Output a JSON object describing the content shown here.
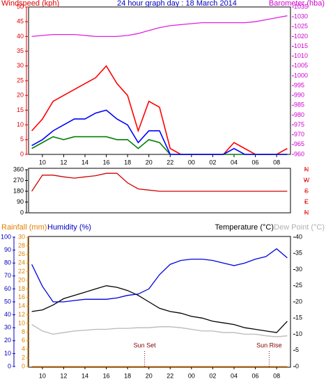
{
  "chart_data": [
    {
      "type": "line",
      "title": "24 hour graph day : 18 March 2014",
      "ylabel": "Windspeed (kph)",
      "y2label": "Barometer (hba)",
      "ycolor": "#e00000",
      "y2color": "#d000d0",
      "x": [
        9,
        10,
        11,
        12,
        13,
        14,
        15,
        16,
        17,
        18,
        19,
        20,
        21,
        22,
        23,
        24,
        25,
        26,
        27,
        28,
        29,
        30,
        31,
        32,
        33
      ],
      "xlim": [
        8.7,
        33.3
      ],
      "xticks": [
        10,
        12,
        14,
        16,
        18,
        20,
        22,
        {
          "value": 24,
          "label": "00"
        },
        {
          "value": 26,
          "label": "02"
        },
        {
          "value": 28,
          "label": "04"
        },
        {
          "value": 30,
          "label": "06"
        },
        {
          "value": 32,
          "label": "08"
        }
      ],
      "ylim": [
        0,
        50
      ],
      "yticks": [
        0,
        5,
        10,
        15,
        20,
        25,
        30,
        35,
        40,
        45,
        50
      ],
      "y2lim": [
        960,
        1035
      ],
      "y2ticks": [
        960,
        965,
        970,
        975,
        980,
        985,
        990,
        995,
        1000,
        1005,
        1010,
        1015,
        1020,
        1025,
        1030,
        1035
      ],
      "series": [
        {
          "color": "#ff0000",
          "values": [
            8,
            12,
            18,
            20,
            22,
            24,
            26,
            30,
            24,
            20,
            8,
            18,
            16,
            2,
            0,
            0,
            0,
            0,
            0,
            4,
            2,
            0,
            0,
            0,
            2
          ]
        },
        {
          "color": "#008000",
          "values": [
            2,
            4,
            6,
            5,
            6,
            6,
            6,
            6,
            5,
            5,
            2,
            5,
            4,
            0,
            0,
            0,
            0,
            0,
            0,
            0,
            0,
            0,
            0,
            0,
            0
          ]
        },
        {
          "color": "#0000ff",
          "values": [
            3,
            5,
            8,
            10,
            12,
            12,
            14,
            15,
            12,
            10,
            4,
            8,
            8,
            0,
            0,
            0,
            0,
            0,
            0,
            2,
            0,
            0,
            0,
            0,
            0
          ]
        },
        {
          "color": "#e020e0",
          "axis": "y2",
          "values": [
            1020,
            1020.5,
            1021,
            1021,
            1021,
            1020.5,
            1020,
            1020,
            1020,
            1020.5,
            1021.5,
            1023,
            1024.5,
            1025.5,
            1026,
            1026.5,
            1027,
            1027,
            1027,
            1027,
            1027,
            1027.5,
            1028.5,
            1029.5,
            1030.5
          ]
        }
      ]
    },
    {
      "type": "line",
      "ycolor": "#000000",
      "y2color": "#e00000",
      "x": [
        9,
        10,
        11,
        12,
        13,
        14,
        15,
        16,
        17,
        18,
        19,
        20,
        21,
        22,
        23,
        24,
        25,
        26,
        27,
        28,
        29,
        30,
        31,
        32,
        33
      ],
      "xlim": [
        8.7,
        33.3
      ],
      "ylim": [
        0,
        360
      ],
      "yticks": [
        0,
        90,
        180,
        270,
        360
      ],
      "y2lim": [
        0,
        360
      ],
      "y2ticks": [
        {
          "value": 360,
          "label": "N"
        },
        {
          "value": 270,
          "label": "W"
        },
        {
          "value": 180,
          "label": "S"
        },
        {
          "value": 90,
          "label": "E"
        },
        {
          "value": 0,
          "label": "N"
        }
      ],
      "series": [
        {
          "color": "#d00000",
          "values": [
            180,
            315,
            315,
            300,
            290,
            300,
            310,
            330,
            330,
            250,
            200,
            190,
            180,
            180,
            180,
            180,
            180,
            180,
            180,
            180,
            180,
            180,
            180,
            180,
            180
          ]
        }
      ]
    },
    {
      "type": "line",
      "ylabel": "Humidity (%)",
      "y3label": "Rainfall (mm)",
      "y2label": "Temperature (°C)",
      "y4label": "Dew Point (°C)",
      "ycolor": "#0000c0",
      "y3color": "#e08000",
      "y2color": "#000000",
      "y4color": "#b0b0b0",
      "x": [
        9,
        10,
        11,
        12,
        13,
        14,
        15,
        16,
        17,
        18,
        19,
        20,
        21,
        22,
        23,
        24,
        25,
        26,
        27,
        28,
        29,
        30,
        31,
        32,
        33
      ],
      "xlim": [
        8.7,
        33.3
      ],
      "xticks": [
        10,
        12,
        14,
        16,
        18,
        20,
        22,
        {
          "value": 24,
          "label": "00"
        },
        {
          "value": 26,
          "label": "02"
        },
        {
          "value": 28,
          "label": "04"
        },
        {
          "value": 30,
          "label": "06"
        },
        {
          "value": 32,
          "label": "08"
        }
      ],
      "ylim": [
        0,
        100
      ],
      "yticks": [
        0,
        10,
        20,
        30,
        40,
        50,
        60,
        70,
        80,
        90,
        100
      ],
      "y3lim": [
        0,
        30
      ],
      "y3ticks": [
        0,
        2,
        4,
        6,
        8,
        10,
        12,
        14,
        16,
        18,
        20,
        22,
        24,
        26,
        28,
        30
      ],
      "y2lim": [
        0,
        40
      ],
      "y2ticks": [
        0,
        5,
        10,
        15,
        20,
        25,
        30,
        35,
        40
      ],
      "annotations": [
        {
          "text": "Sun Set",
          "x": 19.6
        },
        {
          "text": "Sun Rise",
          "x": 31.3
        }
      ],
      "series": [
        {
          "color": "#b8b8b8",
          "axis": "y2",
          "values": [
            13,
            11,
            10,
            10.5,
            11,
            11.2,
            11.5,
            11.5,
            11.8,
            11.8,
            12,
            12,
            12.3,
            12.3,
            12,
            11.5,
            11,
            11,
            10.5,
            10.5,
            10,
            10,
            9.5,
            9.2,
            9.5
          ]
        },
        {
          "color": "#000000",
          "axis": "y2",
          "values": [
            17,
            17.5,
            19,
            21,
            22,
            23,
            24,
            25,
            24.5,
            23.5,
            22,
            20,
            18,
            17,
            16.5,
            15.5,
            15,
            14,
            13.5,
            13,
            12,
            11.5,
            11,
            10.5,
            14
          ]
        },
        {
          "color": "#0000e0",
          "values": [
            79,
            62,
            50,
            50,
            51,
            52,
            52,
            52,
            53,
            55,
            56,
            60,
            71,
            79,
            82,
            83,
            83,
            82,
            80,
            78,
            80,
            83,
            85,
            91,
            84
          ]
        },
        {
          "color": "#ff8000",
          "axis": "y3",
          "values": [
            0,
            0,
            0,
            0,
            0,
            0,
            0,
            0,
            0,
            0,
            0,
            0,
            0,
            0,
            0,
            0,
            0,
            0,
            0,
            0,
            0,
            0,
            0,
            0,
            0
          ]
        }
      ]
    }
  ]
}
